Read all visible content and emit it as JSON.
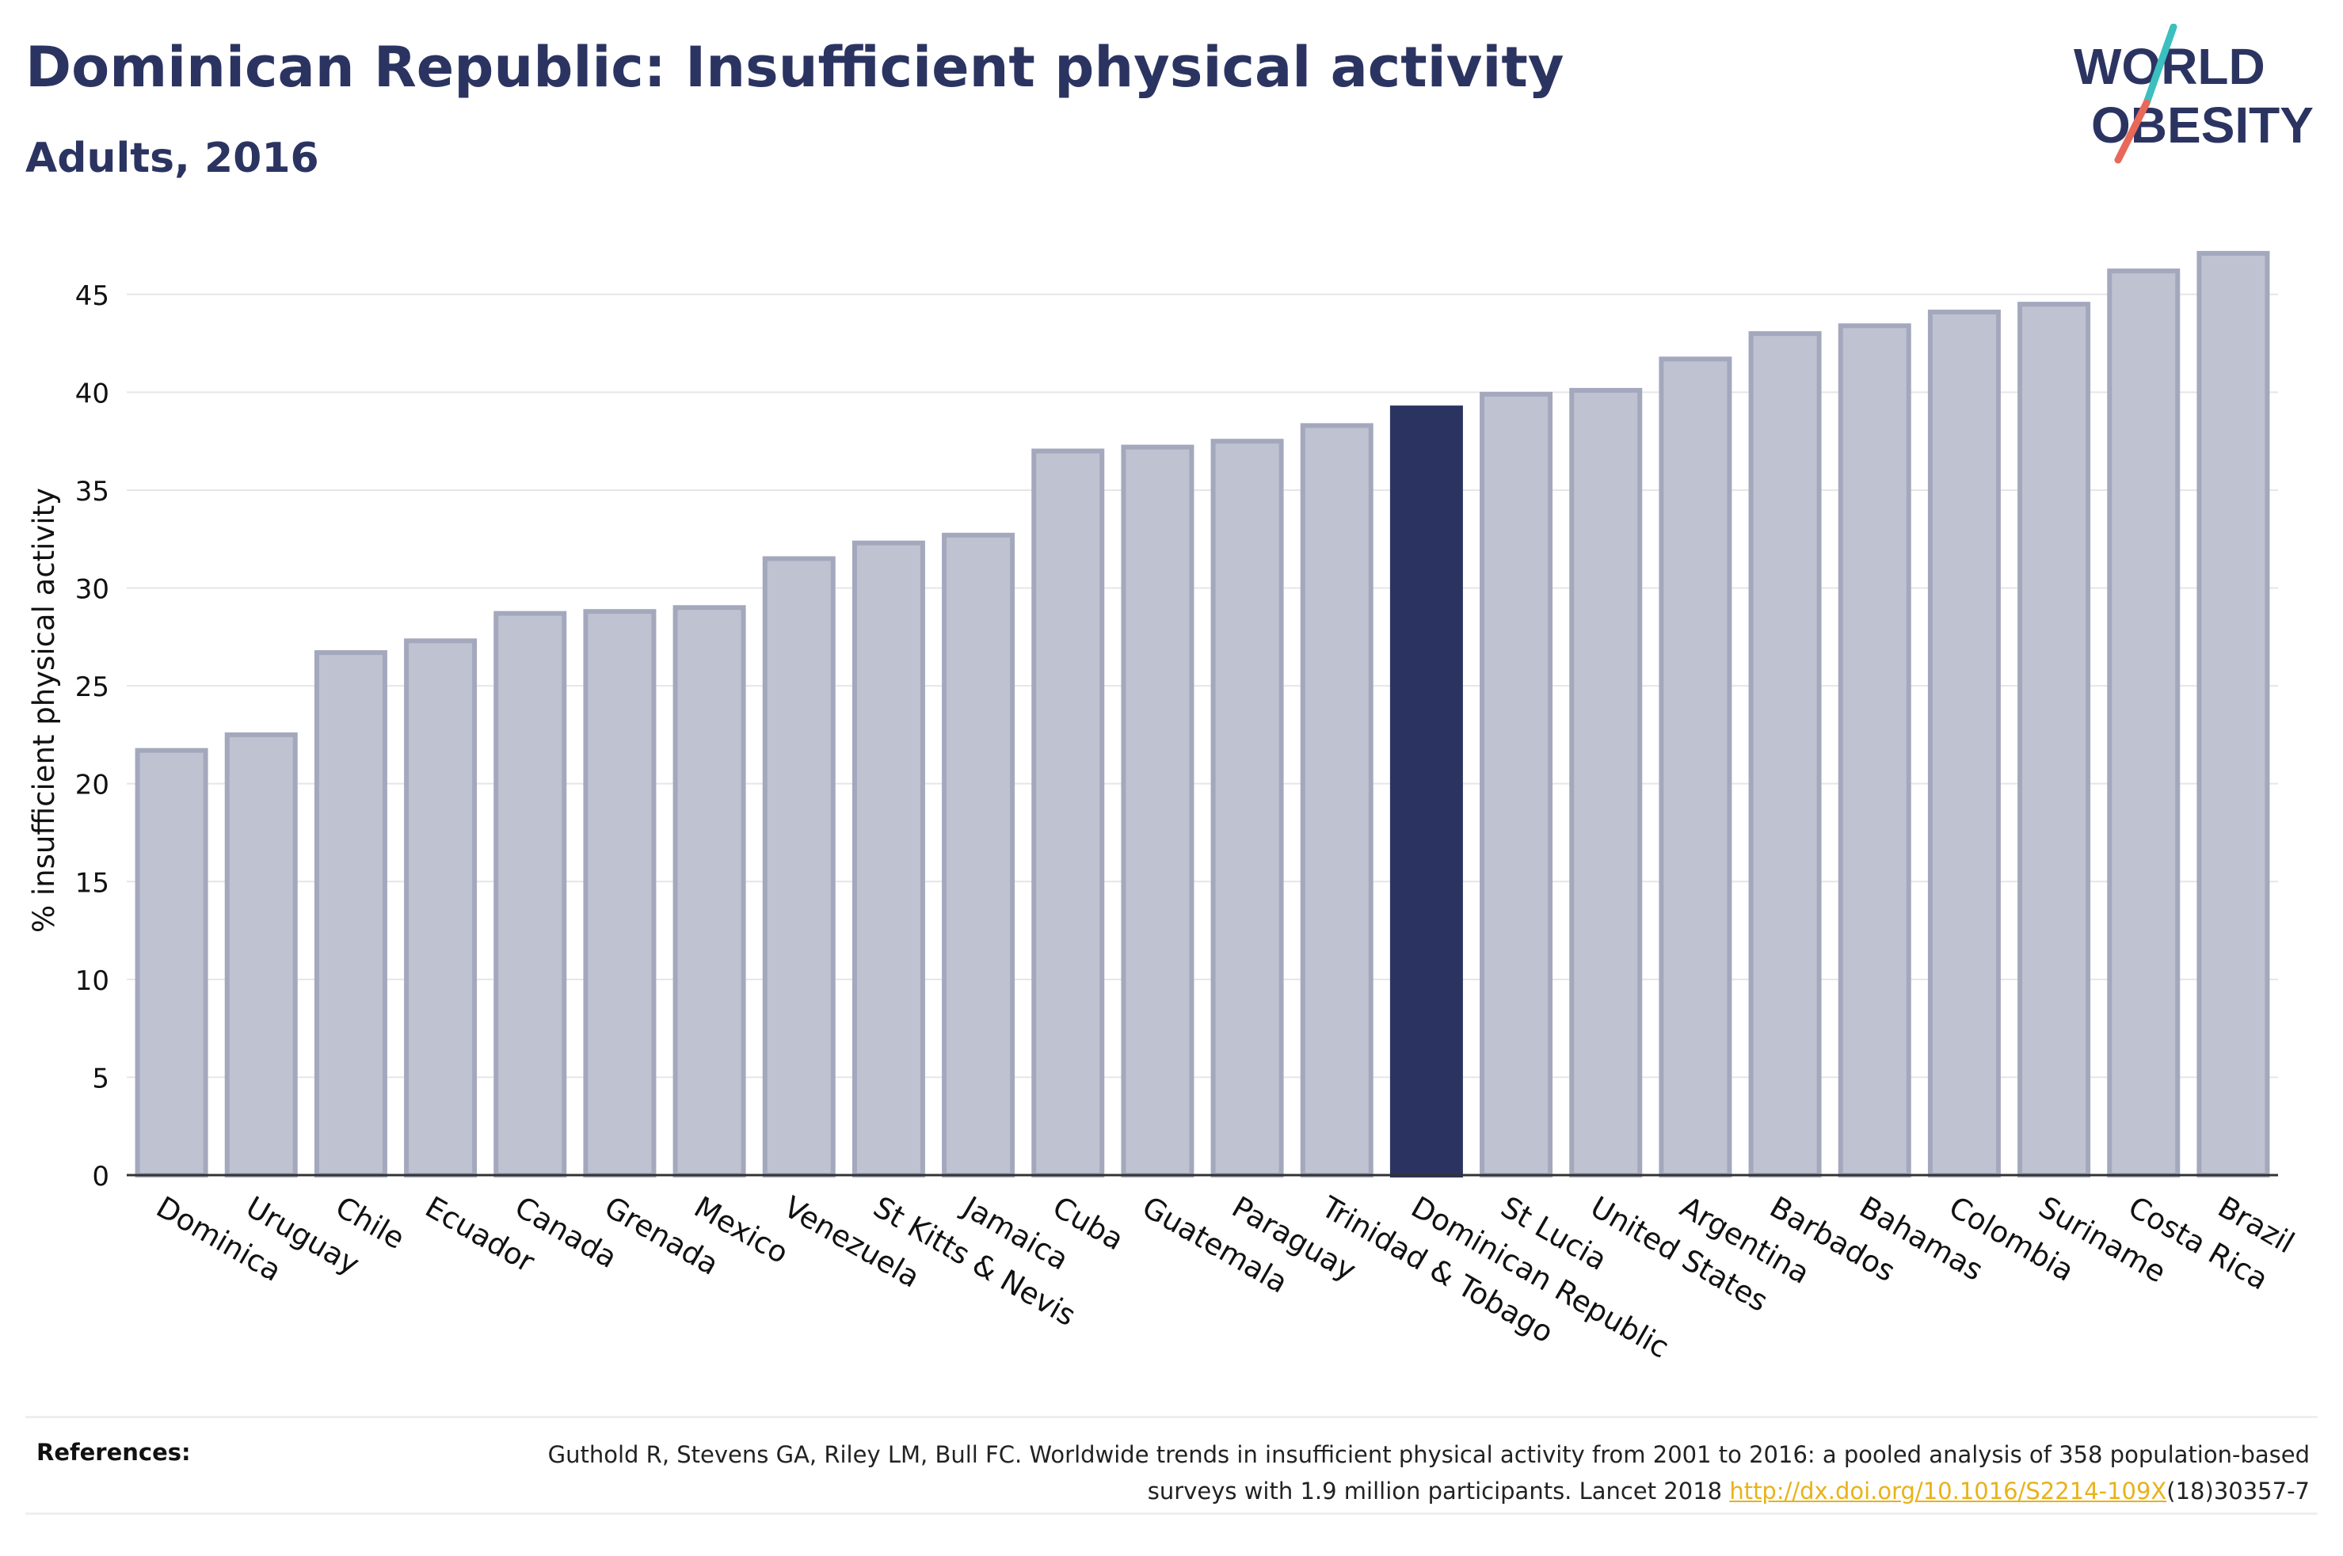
{
  "header": {
    "title": "Dominican Republic: Insufficient physical activity",
    "subtitle": "Adults, 2016"
  },
  "logo": {
    "line1": "WORLD",
    "line2": "OBESITY",
    "text_color": "#2b3461",
    "slash_colors": [
      "#3bbfbf",
      "#e8685a"
    ]
  },
  "chart_data": {
    "type": "bar",
    "title": "Dominican Republic: Insufficient physical activity",
    "subtitle": "Adults, 2016",
    "xlabel": "",
    "ylabel": "% insufficient physical activity",
    "ylim": [
      0,
      47.5
    ],
    "yticks": [
      0,
      5,
      10,
      15,
      20,
      25,
      30,
      35,
      40,
      45
    ],
    "grid": true,
    "legend": "none",
    "highlight": "Dominican Republic",
    "colors": {
      "bar": "#bfc2d0",
      "bar_border": "#a4a8bd",
      "highlight": "#2b3461",
      "axis": "#333333",
      "grid": "#e6e6e6"
    },
    "categories": [
      "Dominica",
      "Uruguay",
      "Chile",
      "Ecuador",
      "Canada",
      "Grenada",
      "Mexico",
      "Venezuela",
      "St Kitts & Nevis",
      "Jamaica",
      "Cuba",
      "Guatemala",
      "Paraguay",
      "Trinidad & Tobago",
      "Dominican Republic",
      "St Lucia",
      "United States",
      "Argentina",
      "Barbados",
      "Bahamas",
      "Colombia",
      "Suriname",
      "Costa Rica",
      "Brazil"
    ],
    "values": [
      21.7,
      22.5,
      26.7,
      27.3,
      28.7,
      28.8,
      29.0,
      31.5,
      32.3,
      32.7,
      37.0,
      37.2,
      37.5,
      38.3,
      39.2,
      39.9,
      40.1,
      41.7,
      43.0,
      43.4,
      44.1,
      44.5,
      46.2,
      47.1
    ]
  },
  "references": {
    "label": "References:",
    "text_before": "Guthold R, Stevens GA, Riley LM, Bull FC. Worldwide trends in insufficient physical activity from 2001 to 2016: a pooled analysis of 358 population-based surveys with 1.9 million participants. Lancet 2018 ",
    "link_text": "http://dx.doi.org/10.1016/S2214-109X",
    "text_after": "(18)30357-7"
  }
}
